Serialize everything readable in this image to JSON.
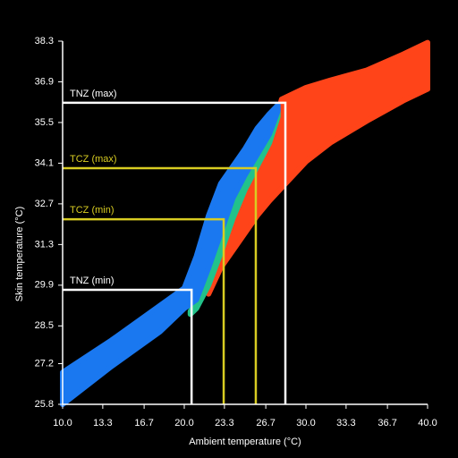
{
  "chart_data": {
    "type": "band",
    "xlabel": "Ambient temperature (°C)",
    "ylabel": "Skin temperature (°C)",
    "xlim": [
      10,
      40
    ],
    "xticks": [
      {
        "value": 10,
        "label": "10.0"
      },
      13.3,
      16.7,
      {
        "value": 20,
        "label": "20.0"
      },
      23.3,
      26.7,
      {
        "value": 30,
        "label": "30.0"
      },
      33.3,
      36.7,
      {
        "value": 40,
        "label": "40.0"
      }
    ],
    "ylim": [
      25.8,
      38.3
    ],
    "yticks": [
      25.8,
      27.2,
      28.5,
      29.9,
      31.3,
      32.7,
      34.1,
      35.5,
      36.9,
      38.3
    ],
    "axis_color": "#ffffff",
    "bands": [
      {
        "color": "#ff4419",
        "x": [
          22,
          23,
          24,
          25,
          26,
          27,
          28,
          30,
          32,
          35,
          38,
          40
        ],
        "upper": [
          29.9,
          31.0,
          32.2,
          33.2,
          34.0,
          34.8,
          36.3,
          36.7,
          36.95,
          37.3,
          37.85,
          38.25
        ],
        "lower": [
          29.6,
          30.5,
          31.1,
          31.7,
          32.3,
          32.8,
          33.25,
          34.15,
          34.8,
          35.55,
          36.25,
          36.65
        ]
      },
      {
        "color": "#22c28a",
        "x": [
          20.5,
          21,
          22,
          23,
          24,
          25,
          26,
          27,
          27.7
        ],
        "upper": [
          29.0,
          29.4,
          30.5,
          31.7,
          32.9,
          33.7,
          34.4,
          35.1,
          35.9
        ],
        "lower": [
          28.9,
          29.1,
          29.9,
          31.0,
          32.2,
          33.2,
          34.0,
          34.8,
          35.7
        ]
      },
      {
        "color": "#1a78f0",
        "x": [
          10,
          14,
          18,
          20,
          21,
          22,
          23,
          24,
          25,
          26,
          27,
          27.7
        ],
        "upper": [
          26.9,
          28.0,
          29.2,
          29.8,
          30.9,
          32.3,
          33.4,
          34.0,
          34.6,
          35.3,
          35.8,
          36.1
        ],
        "lower": [
          25.8,
          27.1,
          28.3,
          29.1,
          29.4,
          30.5,
          31.7,
          32.9,
          33.7,
          34.4,
          35.1,
          35.9
        ]
      }
    ],
    "thresholds": [
      {
        "label": "TNZ (min)",
        "x": 20.6,
        "y": 29.74,
        "color": "#ffffff"
      },
      {
        "label": "TCZ (min)",
        "x": 23.24,
        "y": 32.17,
        "color": "#d8cc22"
      },
      {
        "label": "TCZ (max)",
        "x": 25.88,
        "y": 33.93,
        "color": "#d8cc22"
      },
      {
        "label": "TNZ (max)",
        "x": 28.31,
        "y": 36.18,
        "color": "#ffffff"
      }
    ]
  }
}
